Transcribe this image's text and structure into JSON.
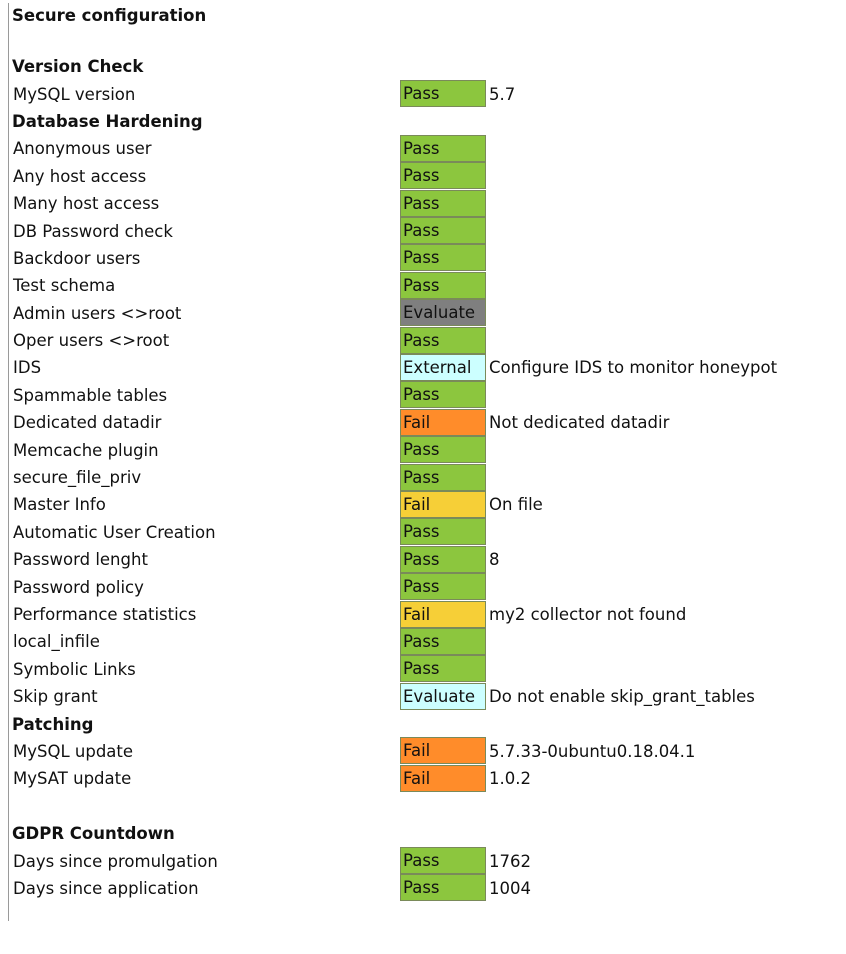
{
  "title": "Secure configuration",
  "status_colors": {
    "Pass": "#8cc63e",
    "Evaluate-gray": "#7f7f7f",
    "External": "#ccffff",
    "Evaluate-light": "#ccffff",
    "Fail-orange": "#ff8c2a",
    "Fail-yellow": "#f6cf37"
  },
  "sections": [
    {
      "heading": "Version Check",
      "items": [
        {
          "label": "MySQL version",
          "status": "Pass",
          "color": "#8cc63e",
          "value": "5.7"
        }
      ]
    },
    {
      "heading": "Database Hardening",
      "items": [
        {
          "label": "Anonymous user",
          "status": "Pass",
          "color": "#8cc63e",
          "value": ""
        },
        {
          "label": "Any host access",
          "status": "Pass",
          "color": "#8cc63e",
          "value": ""
        },
        {
          "label": "Many host access",
          "status": "Pass",
          "color": "#8cc63e",
          "value": ""
        },
        {
          "label": "DB Password check",
          "status": "Pass",
          "color": "#8cc63e",
          "value": ""
        },
        {
          "label": "Backdoor users",
          "status": "Pass",
          "color": "#8cc63e",
          "value": ""
        },
        {
          "label": "Test schema",
          "status": "Pass",
          "color": "#8cc63e",
          "value": ""
        },
        {
          "label": "Admin users <>root",
          "status": "Evaluate",
          "color": "#7f7f7f",
          "value": ""
        },
        {
          "label": "Oper users <>root",
          "status": "Pass",
          "color": "#8cc63e",
          "value": ""
        },
        {
          "label": "IDS",
          "status": "External",
          "color": "#ccffff",
          "value": "Configure IDS to monitor honeypot"
        },
        {
          "label": "Spammable tables",
          "status": "Pass",
          "color": "#8cc63e",
          "value": ""
        },
        {
          "label": "Dedicated datadir",
          "status": "Fail",
          "color": "#ff8c2a",
          "value": "Not dedicated datadir"
        },
        {
          "label": "Memcache plugin",
          "status": "Pass",
          "color": "#8cc63e",
          "value": ""
        },
        {
          "label": "secure_file_priv",
          "status": "Pass",
          "color": "#8cc63e",
          "value": ""
        },
        {
          "label": "Master Info",
          "status": "Fail",
          "color": "#f6cf37",
          "value": "On file"
        },
        {
          "label": "Automatic User Creation",
          "status": "Pass",
          "color": "#8cc63e",
          "value": ""
        },
        {
          "label": "Password lenght",
          "status": "Pass",
          "color": "#8cc63e",
          "value": "8"
        },
        {
          "label": "Password policy",
          "status": "Pass",
          "color": "#8cc63e",
          "value": ""
        },
        {
          "label": "Performance statistics",
          "status": "Fail",
          "color": "#f6cf37",
          "value": "my2 collector not found"
        },
        {
          "label": "local_infile",
          "status": "Pass",
          "color": "#8cc63e",
          "value": ""
        },
        {
          "label": "Symbolic Links",
          "status": "Pass",
          "color": "#8cc63e",
          "value": ""
        },
        {
          "label": "Skip grant",
          "status": "Evaluate",
          "color": "#ccffff",
          "value": "Do not enable skip_grant_tables"
        }
      ]
    },
    {
      "heading": "Patching",
      "items": [
        {
          "label": "MySQL update",
          "status": "Fail",
          "color": "#ff8c2a",
          "value": "5.7.33-0ubuntu0.18.04.1"
        },
        {
          "label": "MySAT update",
          "status": "Fail",
          "color": "#ff8c2a",
          "value": "1.0.2"
        }
      ]
    },
    {
      "heading": "GDPR Countdown",
      "gap_before": true,
      "items": [
        {
          "label": "Days since promulgation",
          "status": "Pass",
          "color": "#8cc63e",
          "value": "1762"
        },
        {
          "label": "Days since application",
          "status": "Pass",
          "color": "#8cc63e",
          "value": "1004"
        }
      ]
    }
  ]
}
